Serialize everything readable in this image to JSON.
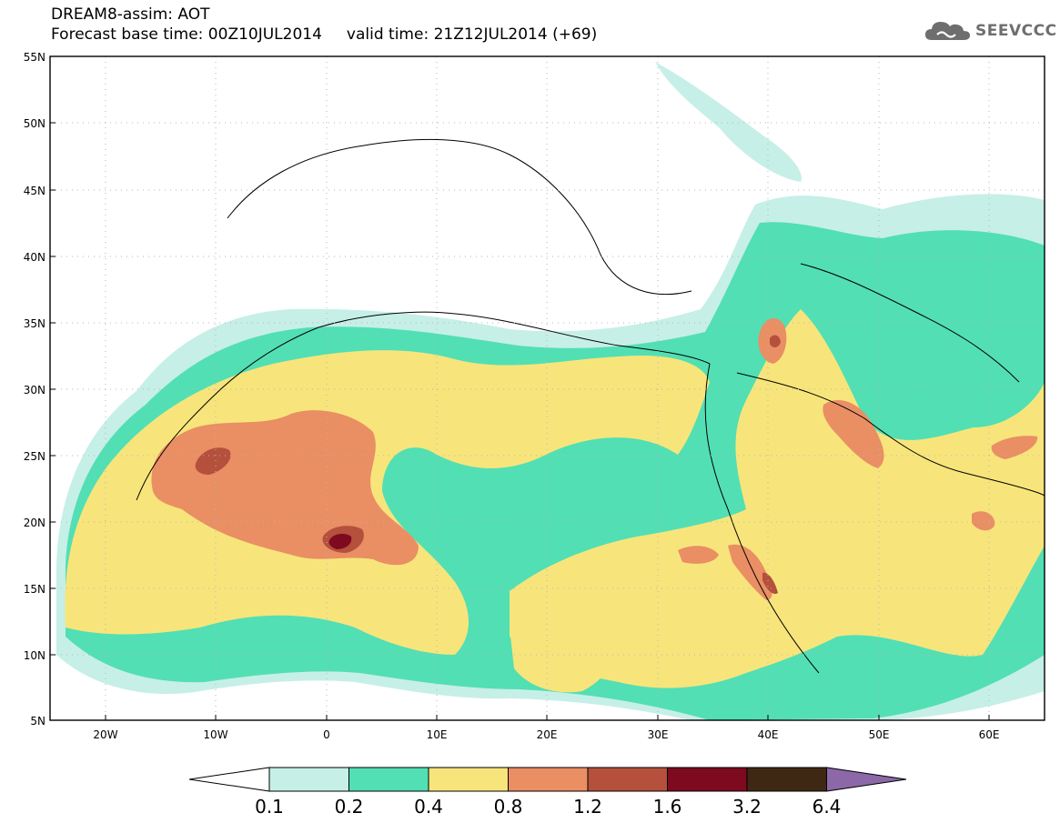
{
  "header": {
    "line1": "DREAM8-assim: AOT",
    "line2": "Forecast base time: 00Z10JUL2014     valid time: 21Z12JUL2014 (+69)"
  },
  "logo": {
    "text": "SEEVCCC",
    "icon": "cloud-icon",
    "color": "#6e6e6e"
  },
  "axes": {
    "lat_labels": [
      "55N",
      "50N",
      "45N",
      "40N",
      "35N",
      "30N",
      "25N",
      "20N",
      "15N",
      "10N",
      "5N"
    ],
    "lon_labels": [
      "20W",
      "10W",
      "0",
      "10E",
      "20E",
      "30E",
      "40E",
      "50E",
      "60E"
    ],
    "lat_range": [
      5,
      55
    ],
    "lon_range": [
      -25,
      65
    ]
  },
  "colorbar": {
    "labels": [
      "0.1",
      "0.2",
      "0.4",
      "0.8",
      "1.2",
      "1.6",
      "3.2",
      "6.4"
    ],
    "colors": [
      "#ffffff",
      "#c6efe7",
      "#52dfb4",
      "#f7e57b",
      "#ea8e64",
      "#b4503c",
      "#7e0a1f",
      "#3e2814",
      "#8d68a8"
    ]
  }
}
